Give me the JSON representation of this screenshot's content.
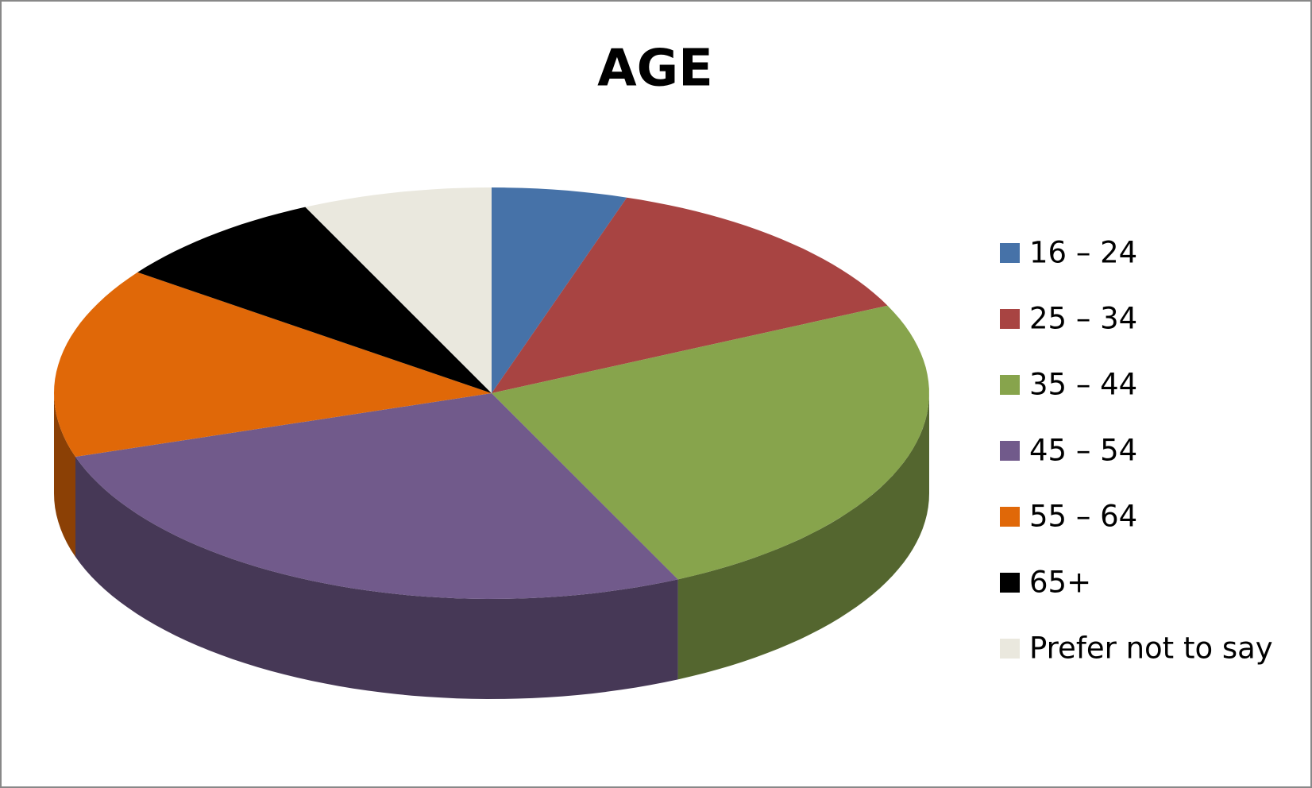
{
  "chart_data": {
    "type": "pie",
    "title": "AGE",
    "categories": [
      "16 – 24",
      "25 – 34",
      "35 – 44",
      "45 – 54",
      "55 – 64",
      "65+",
      "Prefer not to say"
    ],
    "values": [
      5,
      13,
      25,
      27,
      15,
      8,
      7
    ],
    "colors": [
      "#4672a8",
      "#a84442",
      "#87a44c",
      "#715a8b",
      "#e06808",
      "#000000",
      "#eae8de"
    ],
    "legend": "right"
  }
}
